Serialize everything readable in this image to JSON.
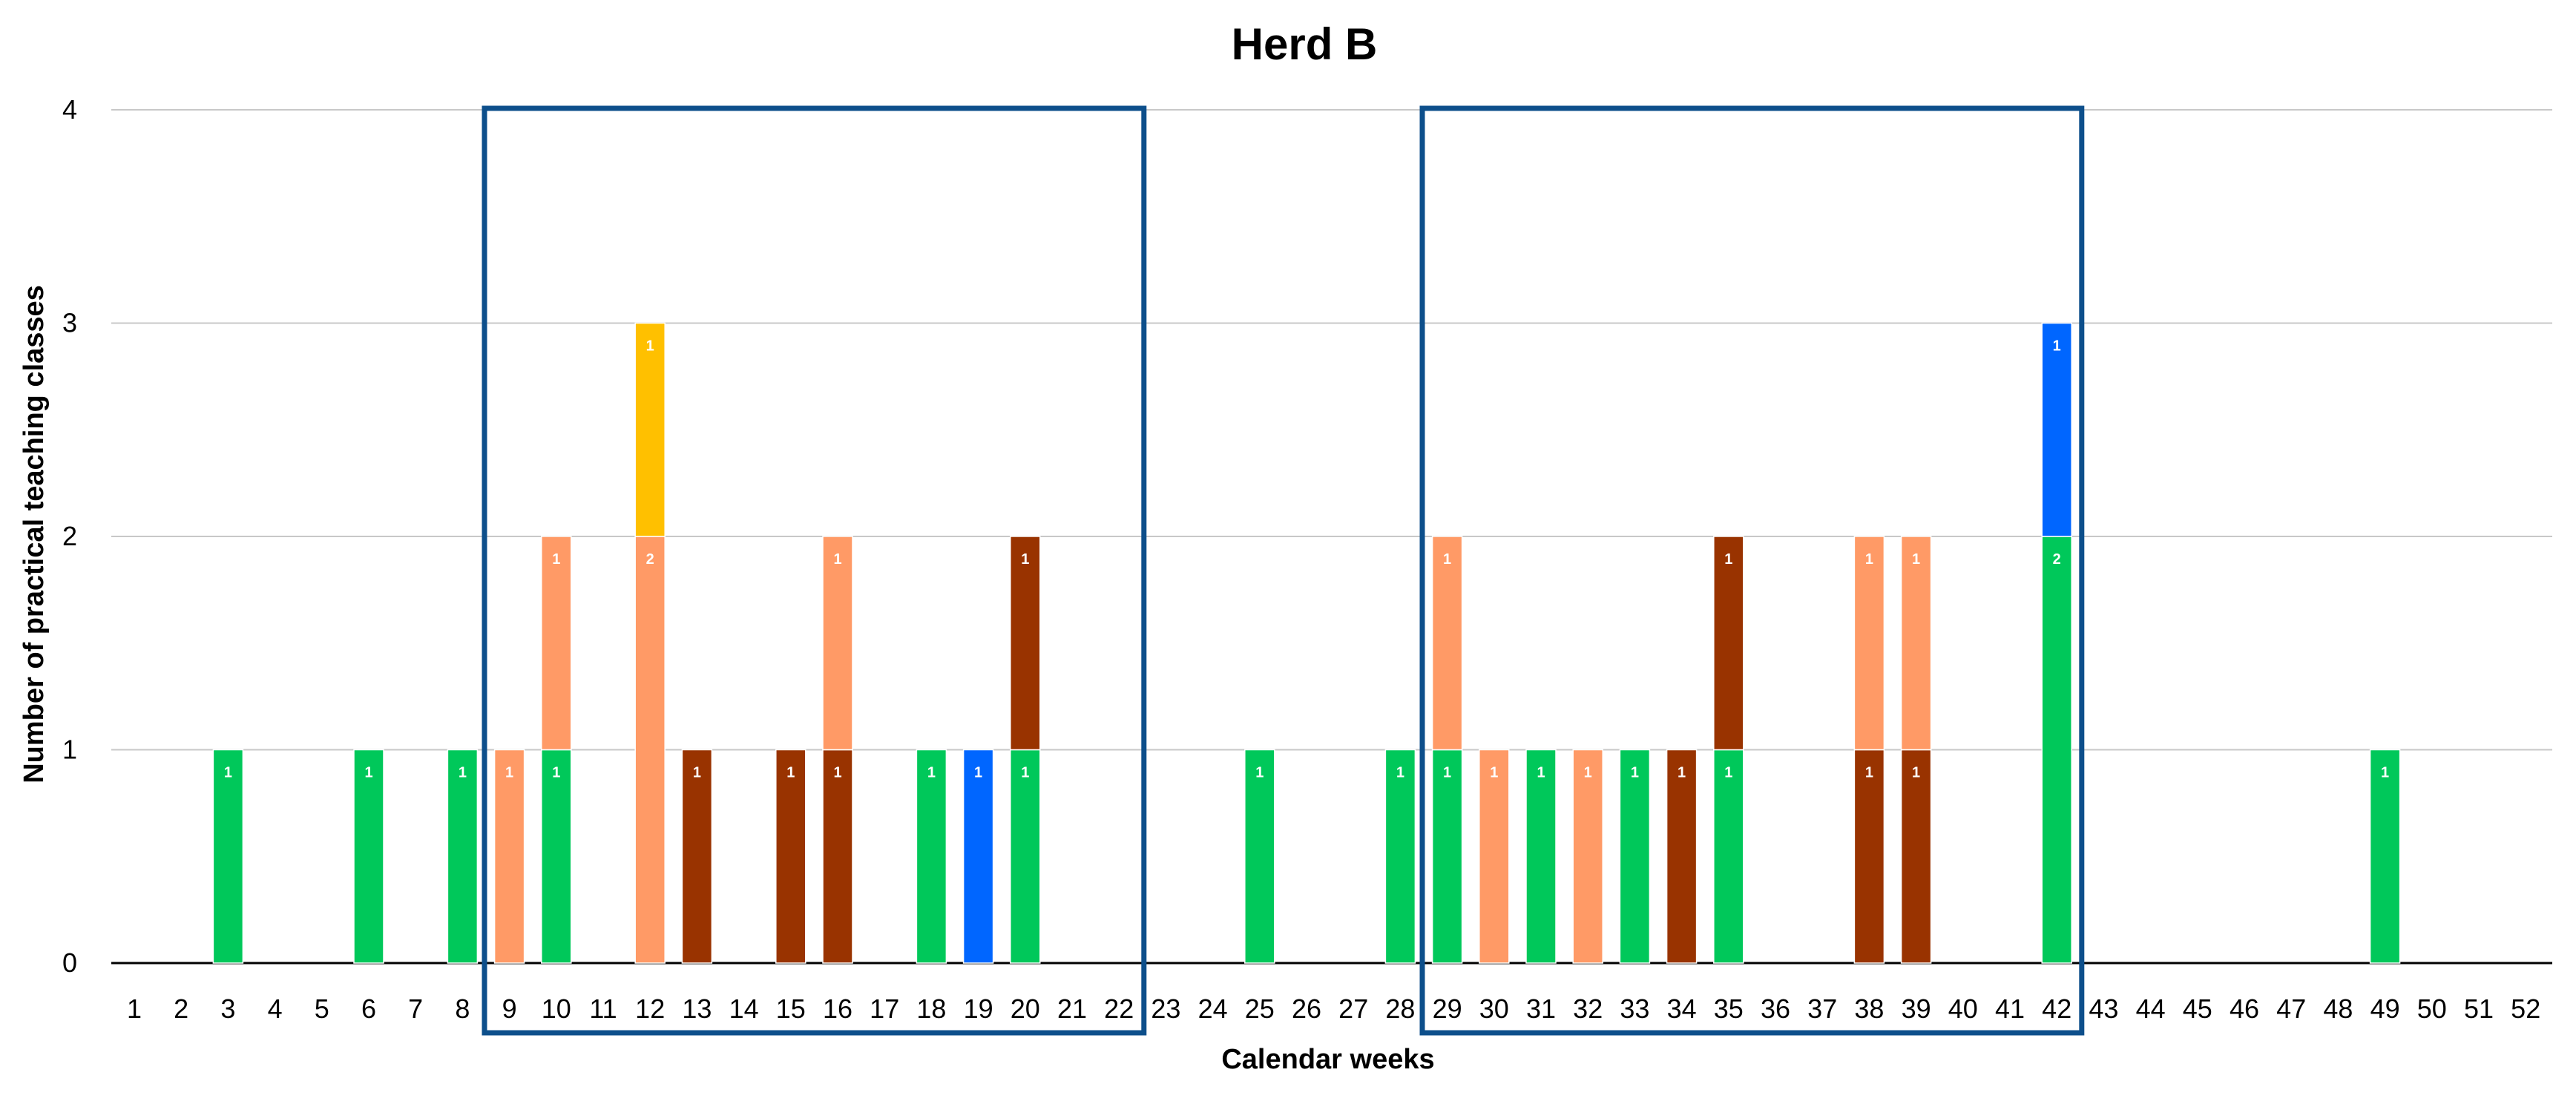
{
  "chart_data": {
    "type": "bar",
    "stacked": true,
    "title": "Herd B",
    "xlabel": "Calendar weeks",
    "ylabel": "Number of practical teaching classes",
    "ylim": [
      0,
      4
    ],
    "yticks": [
      0,
      1,
      2,
      3,
      4
    ],
    "grid": true,
    "legend": "none",
    "categories": [
      "1",
      "2",
      "3",
      "4",
      "5",
      "6",
      "7",
      "8",
      "9",
      "10",
      "11",
      "12",
      "13",
      "14",
      "15",
      "16",
      "17",
      "18",
      "19",
      "20",
      "21",
      "22",
      "23",
      "24",
      "25",
      "26",
      "27",
      "28",
      "29",
      "30",
      "31",
      "32",
      "33",
      "34",
      "35",
      "36",
      "37",
      "38",
      "39",
      "40",
      "41",
      "42",
      "43",
      "44",
      "45",
      "46",
      "47",
      "48",
      "49",
      "50",
      "51",
      "52"
    ],
    "colors": {
      "green": "#00c85a",
      "salmon": "#ff9a66",
      "brown": "#993300",
      "yellow": "#ffc000",
      "blue": "#0066ff"
    },
    "bars": [
      {
        "week": 3,
        "segments": [
          {
            "color": "green",
            "value": 1
          }
        ]
      },
      {
        "week": 6,
        "segments": [
          {
            "color": "green",
            "value": 1
          }
        ]
      },
      {
        "week": 8,
        "segments": [
          {
            "color": "green",
            "value": 1
          }
        ]
      },
      {
        "week": 9,
        "segments": [
          {
            "color": "salmon",
            "value": 1
          }
        ]
      },
      {
        "week": 10,
        "segments": [
          {
            "color": "green",
            "value": 1
          },
          {
            "color": "salmon",
            "value": 1
          }
        ]
      },
      {
        "week": 12,
        "segments": [
          {
            "color": "salmon",
            "value": 2
          },
          {
            "color": "yellow",
            "value": 1
          }
        ]
      },
      {
        "week": 13,
        "segments": [
          {
            "color": "brown",
            "value": 1
          }
        ]
      },
      {
        "week": 15,
        "segments": [
          {
            "color": "brown",
            "value": 1
          }
        ]
      },
      {
        "week": 16,
        "segments": [
          {
            "color": "brown",
            "value": 1
          },
          {
            "color": "salmon",
            "value": 1
          }
        ]
      },
      {
        "week": 18,
        "segments": [
          {
            "color": "green",
            "value": 1
          }
        ]
      },
      {
        "week": 19,
        "segments": [
          {
            "color": "blue",
            "value": 1
          }
        ]
      },
      {
        "week": 20,
        "segments": [
          {
            "color": "green",
            "value": 1
          },
          {
            "color": "brown",
            "value": 1
          }
        ]
      },
      {
        "week": 25,
        "segments": [
          {
            "color": "green",
            "value": 1
          }
        ]
      },
      {
        "week": 28,
        "segments": [
          {
            "color": "green",
            "value": 1
          }
        ]
      },
      {
        "week": 29,
        "segments": [
          {
            "color": "green",
            "value": 1
          },
          {
            "color": "salmon",
            "value": 1
          }
        ]
      },
      {
        "week": 30,
        "segments": [
          {
            "color": "salmon",
            "value": 1
          }
        ]
      },
      {
        "week": 31,
        "segments": [
          {
            "color": "green",
            "value": 1
          }
        ]
      },
      {
        "week": 32,
        "segments": [
          {
            "color": "salmon",
            "value": 1
          }
        ]
      },
      {
        "week": 33,
        "segments": [
          {
            "color": "green",
            "value": 1
          }
        ]
      },
      {
        "week": 34,
        "segments": [
          {
            "color": "brown",
            "value": 1
          }
        ]
      },
      {
        "week": 35,
        "segments": [
          {
            "color": "green",
            "value": 1
          },
          {
            "color": "brown",
            "value": 1
          }
        ]
      },
      {
        "week": 38,
        "segments": [
          {
            "color": "brown",
            "value": 1
          },
          {
            "color": "salmon",
            "value": 1
          }
        ]
      },
      {
        "week": 39,
        "segments": [
          {
            "color": "brown",
            "value": 1
          },
          {
            "color": "salmon",
            "value": 1
          }
        ]
      },
      {
        "week": 42,
        "segments": [
          {
            "color": "green",
            "value": 2
          },
          {
            "color": "blue",
            "value": 1
          }
        ]
      },
      {
        "week": 49,
        "segments": [
          {
            "color": "green",
            "value": 1
          }
        ]
      }
    ],
    "highlight_boxes": [
      {
        "from_week": 9,
        "to_week": 22,
        "color": "#0d4f8b"
      },
      {
        "from_week": 29,
        "to_week": 42,
        "color": "#0d4f8b"
      }
    ]
  }
}
